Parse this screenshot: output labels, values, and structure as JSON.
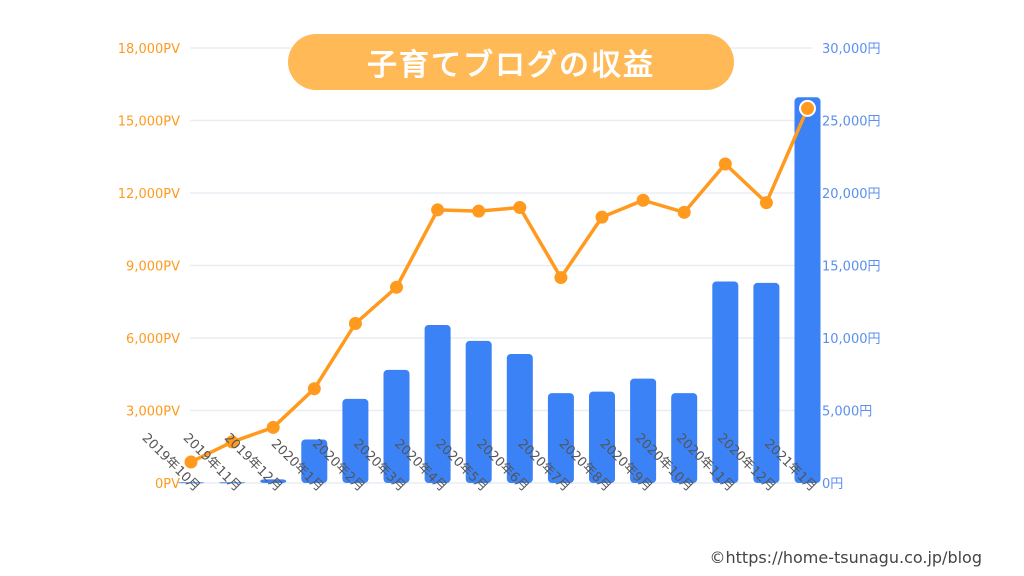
{
  "title": "子育てブログの収益",
  "copyright": "©https://home-tsunagu.co.jp/blog",
  "chart_data": {
    "type": "bar+line",
    "title": "子育てブログの収益",
    "categories": [
      "2019年10月",
      "2019年11月",
      "2019年12月",
      "2020年1月",
      "2020年2月",
      "2020年3月",
      "2020年4月",
      "2020年5月",
      "2020年6月",
      "2020年7月",
      "2020年8月",
      "2020年9月",
      "2020年10月",
      "2020年11月",
      "2020年12月",
      "2021年1月"
    ],
    "left_axis": {
      "ylim": [
        0,
        18000
      ],
      "ticks": [
        "0PV",
        "3,000PV",
        "6,000PV",
        "9,000PV",
        "12,000PV",
        "15,000PV",
        "18,000PV"
      ],
      "color": "#FF9A1F"
    },
    "right_axis": {
      "ylim": [
        0,
        30000
      ],
      "ticks": [
        "0円",
        "5,000円",
        "10,000円",
        "15,000円",
        "20,000円",
        "25,000円",
        "30,000円"
      ],
      "color": "#5B8FF0"
    },
    "grid": true,
    "series": [
      {
        "type": "bar",
        "axis": "right",
        "color": "#3B82F6",
        "values": [
          50,
          50,
          250,
          3000,
          5800,
          7800,
          10900,
          9800,
          8900,
          6200,
          6300,
          7200,
          6200,
          13900,
          13800,
          26600
        ]
      },
      {
        "type": "line",
        "axis": "left",
        "color": "#FF9A1F",
        "values": [
          870,
          1700,
          2300,
          3900,
          6600,
          8100,
          11300,
          11250,
          11400,
          8500,
          11000,
          11700,
          11200,
          13200,
          11600,
          15500
        ]
      }
    ]
  }
}
